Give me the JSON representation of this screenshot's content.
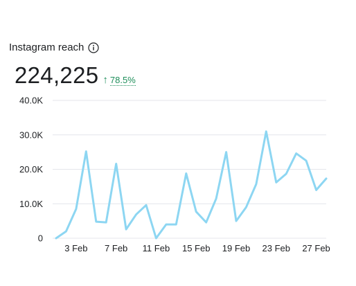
{
  "header": {
    "title": "Instagram reach",
    "info_icon": "info-icon"
  },
  "metric": {
    "value": "224,225",
    "delta_arrow": "↑",
    "delta_value": "78.5%",
    "delta_color": "#1e8e5a"
  },
  "colors": {
    "line": "#8dd6f2",
    "grid": "#e4e6eb",
    "text": "#1c1e21"
  },
  "chart_data": {
    "type": "line",
    "title": "",
    "xlabel": "",
    "ylabel": "",
    "ylim": [
      0,
      40000
    ],
    "yticks": [
      0,
      10000,
      20000,
      30000,
      40000
    ],
    "ytick_labels": [
      "0",
      "10.0K",
      "20.0K",
      "30.0K",
      "40.0K"
    ],
    "xtick_labels": [
      "3 Feb",
      "7 Feb",
      "11 Feb",
      "15 Feb",
      "19 Feb",
      "23 Feb",
      "27 Feb"
    ],
    "xtick_days": [
      3,
      7,
      11,
      15,
      19,
      23,
      27
    ],
    "grid": true,
    "legend": "none",
    "series": [
      {
        "x": [
          1,
          2,
          3,
          4,
          5,
          6,
          7,
          8,
          9,
          10,
          11,
          12,
          13,
          14,
          15,
          16,
          17,
          18,
          19,
          20,
          21,
          22,
          23,
          24,
          25,
          26,
          27,
          28
        ],
        "values": [
          0,
          2000,
          8500,
          25200,
          4800,
          4600,
          21600,
          2600,
          6900,
          9600,
          0,
          4000,
          4000,
          18800,
          7700,
          4600,
          11500,
          25000,
          5000,
          9000,
          15700,
          31000,
          16200,
          18700,
          24600,
          22500,
          14000,
          17300
        ]
      }
    ]
  }
}
